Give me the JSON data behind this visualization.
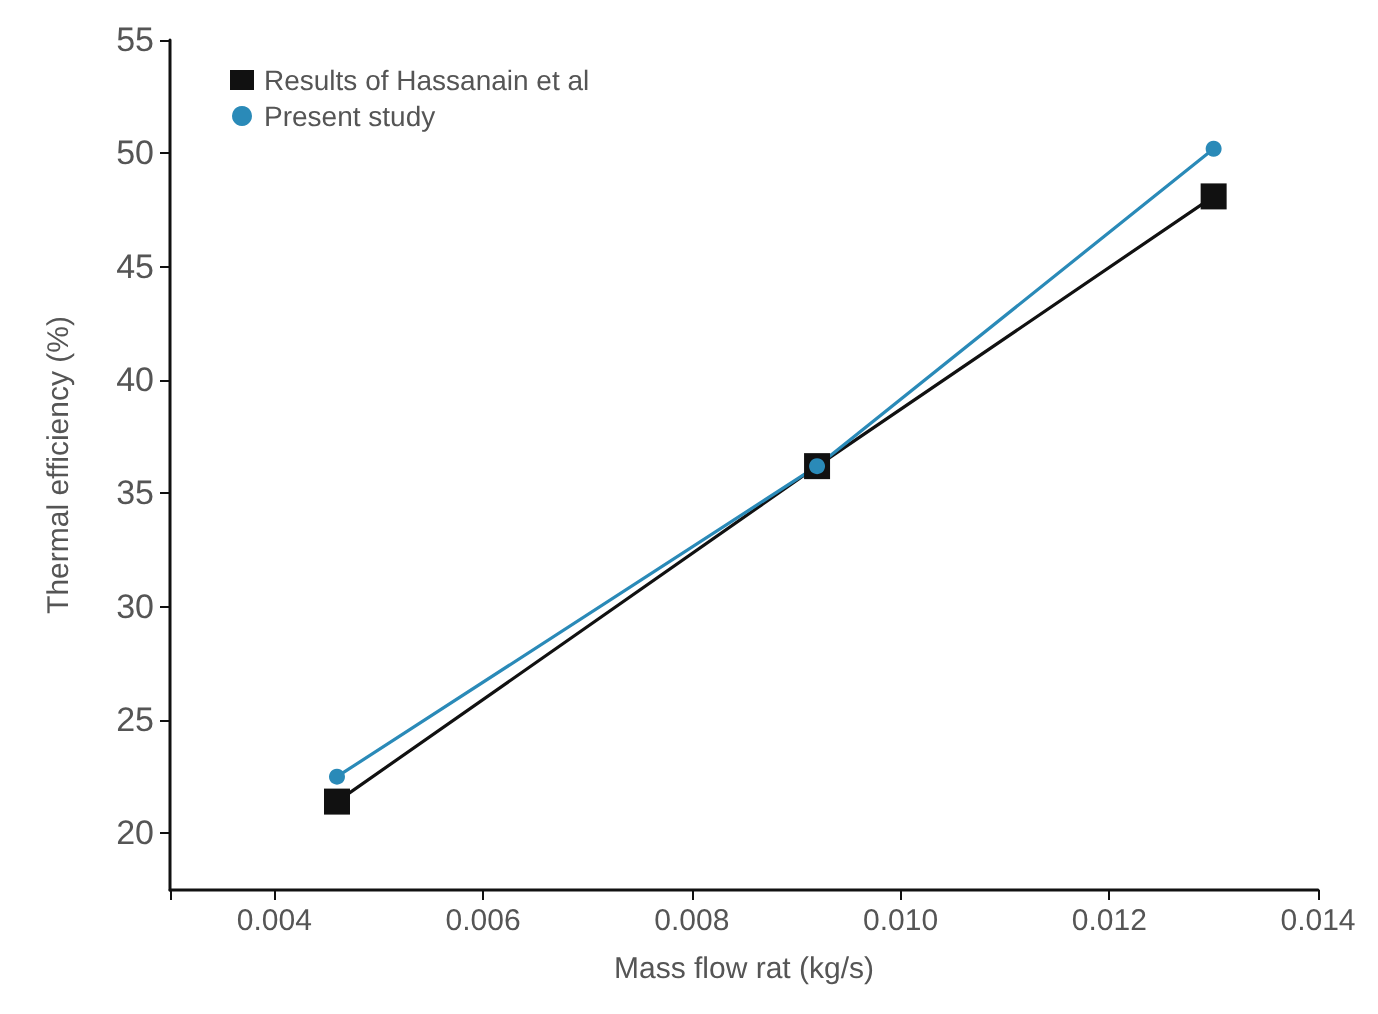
{
  "chart_data": {
    "type": "line",
    "xlabel": "Mass flow rat (kg/s)",
    "ylabel": "Thermal efficiency (%)",
    "x": [
      0.0046,
      0.0092,
      0.013
    ],
    "series": [
      {
        "name": "Results of Hassanain et al",
        "color": "#111111",
        "marker": "square",
        "values": [
          21.4,
          36.2,
          48.1
        ]
      },
      {
        "name": "Present study",
        "color": "#2a8ab8",
        "marker": "circle",
        "values": [
          22.5,
          36.2,
          50.2
        ]
      }
    ],
    "xlim": [
      0.003,
      0.014
    ],
    "xticks": [
      {
        "value": 0.003,
        "label": null
      },
      0.004,
      0.006,
      0.008,
      {
        "value": 0.01,
        "label": "0.010"
      },
      0.012,
      0.014
    ],
    "ylim": [
      17.5,
      55
    ],
    "yticks": [
      20,
      25,
      30,
      35,
      40,
      45,
      50,
      55
    ],
    "grid": false,
    "legend": "top left"
  }
}
